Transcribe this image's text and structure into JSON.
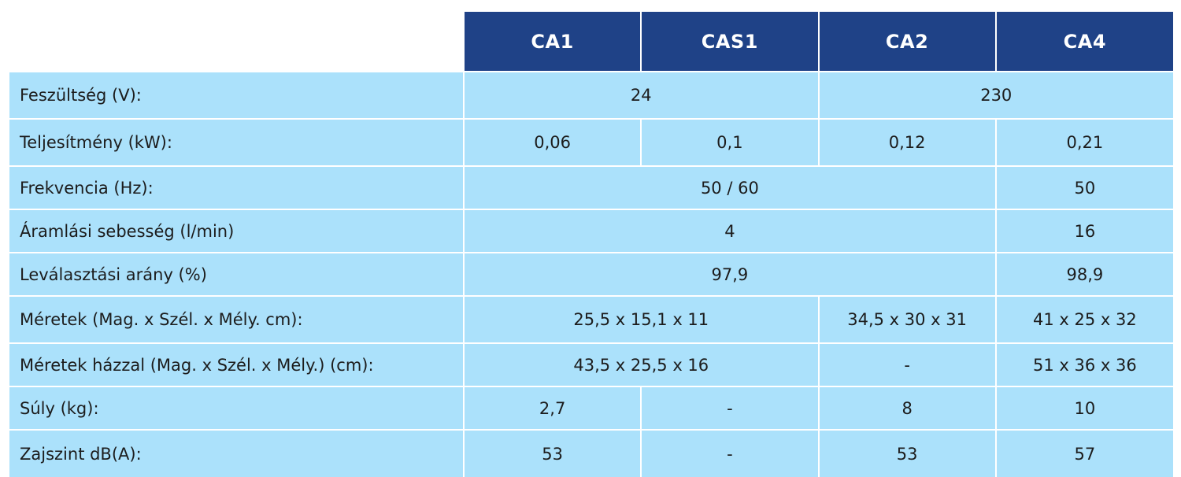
{
  "table": {
    "headers": [
      "CA1",
      "CAS1",
      "CA2",
      "CA4"
    ],
    "rows": [
      {
        "label": "Feszültség (V):",
        "values": [
          "24",
          "230"
        ]
      },
      {
        "label": "Teljesítmény (kW):",
        "values": [
          "0,06",
          "0,1",
          "0,12",
          "0,21"
        ]
      },
      {
        "label": "Frekvencia (Hz):",
        "values": [
          "50 / 60",
          "50"
        ]
      },
      {
        "label": "Áramlási sebesség (l/min)",
        "values": [
          "4",
          "16"
        ]
      },
      {
        "label": "Leválasztási arány (%)",
        "values": [
          "97,9",
          "98,9"
        ]
      },
      {
        "label": "Méretek (Mag. x Szél. x Mély. cm):",
        "values": [
          "25,5 x 15,1 x 11",
          "34,5 x 30 x 31",
          "41 x 25 x 32"
        ]
      },
      {
        "label": "Méretek házzal (Mag. x Szél. x Mély.) (cm):",
        "values": [
          "43,5 x 25,5 x 16",
          "-",
          "51 x 36 x 36"
        ]
      },
      {
        "label": "Súly (kg):",
        "values": [
          "2,7",
          "-",
          "8",
          "10"
        ]
      },
      {
        "label": "Zajszint dB(A):",
        "values": [
          "53",
          "-",
          "53",
          "57"
        ]
      }
    ]
  },
  "colors": {
    "header_bg": "#1f4287",
    "header_text": "#ffffff",
    "row_bg": "#abe1fb",
    "row_text": "#1c1c1c"
  }
}
